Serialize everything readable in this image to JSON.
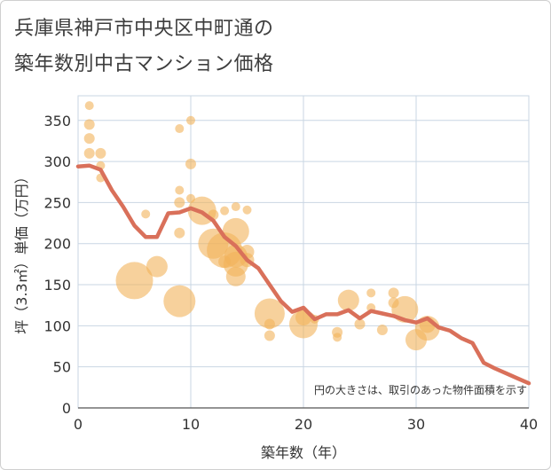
{
  "title_line1": "兵庫県神戸市中央区中町通の",
  "title_line2": "築年数別中古マンション価格",
  "chart_data": {
    "type": "scatter",
    "xlabel": "築年数（年）",
    "ylabel": "坪（3.3㎡）単価（万円）",
    "xlim": [
      0,
      40
    ],
    "ylim": [
      0,
      380
    ],
    "xticks": [
      0,
      10,
      20,
      30,
      40
    ],
    "yticks": [
      0,
      50,
      100,
      150,
      200,
      250,
      300,
      350
    ],
    "grid": true,
    "note": "円の大きさは、取引のあった物件面積を示す",
    "colors": {
      "bubble": "#f2b35a",
      "line": "#d9705a",
      "grid": "#c9d6e3"
    },
    "bubbles": [
      {
        "x": 1,
        "y": 368,
        "s": 5
      },
      {
        "x": 1,
        "y": 345,
        "s": 6
      },
      {
        "x": 1,
        "y": 328,
        "s": 6
      },
      {
        "x": 1,
        "y": 310,
        "s": 6
      },
      {
        "x": 2,
        "y": 310,
        "s": 6
      },
      {
        "x": 2,
        "y": 295,
        "s": 5
      },
      {
        "x": 2,
        "y": 280,
        "s": 5
      },
      {
        "x": 6,
        "y": 236,
        "s": 5
      },
      {
        "x": 5,
        "y": 155,
        "s": 21
      },
      {
        "x": 7,
        "y": 172,
        "s": 12
      },
      {
        "x": 9,
        "y": 340,
        "s": 5
      },
      {
        "x": 9,
        "y": 265,
        "s": 5
      },
      {
        "x": 9,
        "y": 250,
        "s": 6
      },
      {
        "x": 9,
        "y": 213,
        "s": 6
      },
      {
        "x": 9,
        "y": 130,
        "s": 18
      },
      {
        "x": 10,
        "y": 350,
        "s": 5
      },
      {
        "x": 10,
        "y": 297,
        "s": 6
      },
      {
        "x": 10,
        "y": 255,
        "s": 5
      },
      {
        "x": 11,
        "y": 240,
        "s": 16
      },
      {
        "x": 12,
        "y": 235,
        "s": 6
      },
      {
        "x": 12,
        "y": 200,
        "s": 17
      },
      {
        "x": 13,
        "y": 240,
        "s": 5
      },
      {
        "x": 13,
        "y": 192,
        "s": 20
      },
      {
        "x": 13,
        "y": 178,
        "s": 7
      },
      {
        "x": 14,
        "y": 245,
        "s": 5
      },
      {
        "x": 14,
        "y": 215,
        "s": 15
      },
      {
        "x": 14,
        "y": 185,
        "s": 13
      },
      {
        "x": 14,
        "y": 175,
        "s": 14
      },
      {
        "x": 14,
        "y": 160,
        "s": 11
      },
      {
        "x": 15,
        "y": 241,
        "s": 5
      },
      {
        "x": 15,
        "y": 190,
        "s": 8
      },
      {
        "x": 15,
        "y": 180,
        "s": 8
      },
      {
        "x": 17,
        "y": 115,
        "s": 17
      },
      {
        "x": 17,
        "y": 102,
        "s": 6
      },
      {
        "x": 17,
        "y": 88,
        "s": 6
      },
      {
        "x": 20,
        "y": 110,
        "s": 9
      },
      {
        "x": 20,
        "y": 102,
        "s": 16
      },
      {
        "x": 21,
        "y": 108,
        "s": 5
      },
      {
        "x": 23,
        "y": 92,
        "s": 6
      },
      {
        "x": 23,
        "y": 86,
        "s": 5
      },
      {
        "x": 24,
        "y": 131,
        "s": 12
      },
      {
        "x": 25,
        "y": 102,
        "s": 6
      },
      {
        "x": 26,
        "y": 140,
        "s": 5
      },
      {
        "x": 26,
        "y": 122,
        "s": 5
      },
      {
        "x": 27,
        "y": 95,
        "s": 6
      },
      {
        "x": 28,
        "y": 140,
        "s": 6
      },
      {
        "x": 28,
        "y": 128,
        "s": 6
      },
      {
        "x": 29,
        "y": 120,
        "s": 15
      },
      {
        "x": 30,
        "y": 83,
        "s": 12
      },
      {
        "x": 31,
        "y": 101,
        "s": 9
      },
      {
        "x": 31,
        "y": 97,
        "s": 14
      }
    ],
    "line": {
      "x": [
        0,
        1,
        2,
        3,
        4,
        5,
        6,
        7,
        8,
        9,
        10,
        11,
        12,
        13,
        14,
        15,
        16,
        17,
        18,
        19,
        20,
        21,
        22,
        23,
        24,
        25,
        26,
        27,
        28,
        29,
        30,
        31,
        32,
        33,
        34,
        35,
        36,
        37,
        38,
        39,
        40
      ],
      "y": [
        294,
        295,
        290,
        265,
        245,
        222,
        208,
        208,
        237,
        238,
        243,
        238,
        228,
        208,
        197,
        180,
        170,
        150,
        130,
        117,
        122,
        108,
        114,
        114,
        119,
        109,
        118,
        115,
        112,
        107,
        104,
        109,
        98,
        94,
        85,
        79,
        55,
        48,
        42,
        36,
        30
      ]
    }
  }
}
